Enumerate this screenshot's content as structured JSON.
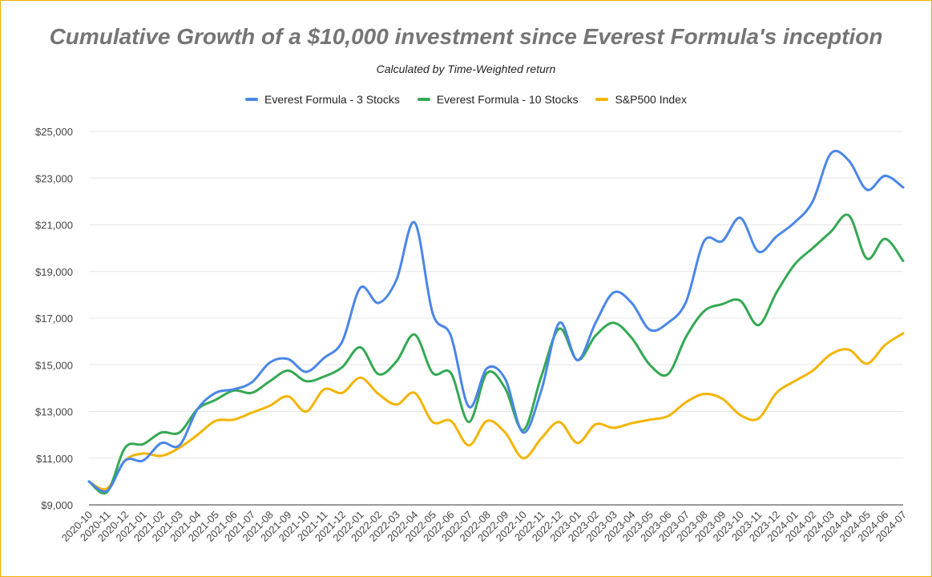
{
  "chart_data": {
    "type": "line",
    "title": "Cumulative Growth of a $10,000 investment since Everest Formula's inception",
    "subtitle": "Calculated by Time-Weighted return",
    "xlabel": "",
    "ylabel": "",
    "ylim": [
      9000,
      25000
    ],
    "yticks": [
      9000,
      11000,
      13000,
      15000,
      17000,
      19000,
      21000,
      23000,
      25000
    ],
    "ytick_labels": [
      "$9,000",
      "$11,000",
      "$13,000",
      "$15,000",
      "$17,000",
      "$19,000",
      "$21,000",
      "$23,000",
      "$25,000"
    ],
    "grid": "horizontal",
    "legend_position": "top-center",
    "categories": [
      "2020-10",
      "2020-11",
      "2020-12",
      "2021-01",
      "2021-02",
      "2021-03",
      "2021-04",
      "2021-05",
      "2021-06",
      "2021-07",
      "2021-08",
      "2021-09",
      "2021-10",
      "2021-11",
      "2021-12",
      "2022-01",
      "2022-02",
      "2022-03",
      "2022-04",
      "2022-05",
      "2022-06",
      "2022-07",
      "2022-08",
      "2022-09",
      "2022-10",
      "2022-11",
      "2022-12",
      "2023-01",
      "2023-02",
      "2023-03",
      "2023-04",
      "2023-05",
      "2023-06",
      "2023-07",
      "2023-08",
      "2023-09",
      "2023-10",
      "2023-11",
      "2023-12",
      "2024-01",
      "2024-02",
      "2024-03",
      "2024-04",
      "2024-05",
      "2024-06",
      "2024-07"
    ],
    "series": [
      {
        "name": "Everest Formula - 3 Stocks",
        "color": "#4a86e8",
        "values": [
          10000,
          9600,
          10900,
          10900,
          11650,
          11550,
          13100,
          13800,
          13950,
          14250,
          15100,
          15250,
          14700,
          15300,
          16000,
          18300,
          17650,
          18650,
          21100,
          17200,
          16250,
          13200,
          14850,
          14400,
          12100,
          13900,
          16800,
          15200,
          16800,
          18100,
          17650,
          16500,
          16800,
          17700,
          20300,
          20300,
          21300,
          19850,
          20500,
          21100,
          22000,
          24050,
          23750,
          22500,
          23100,
          22600
        ]
      },
      {
        "name": "Everest Formula - 10 Stocks",
        "color": "#34a853",
        "values": [
          10000,
          9550,
          11450,
          11600,
          12100,
          12100,
          13100,
          13500,
          13900,
          13800,
          14300,
          14750,
          14300,
          14500,
          14900,
          15750,
          14600,
          15150,
          16300,
          14650,
          14650,
          12550,
          14650,
          14000,
          12200,
          14500,
          16550,
          15200,
          16250,
          16800,
          16150,
          15000,
          14600,
          16200,
          17300,
          17600,
          17750,
          16700,
          18100,
          19300,
          20000,
          20700,
          21400,
          19550,
          20400,
          19450
        ]
      },
      {
        "name": "S&P500 Index",
        "color": "#f4b400",
        "values": [
          10000,
          9700,
          10900,
          11200,
          11100,
          11450,
          12000,
          12600,
          12650,
          12950,
          13250,
          13650,
          13000,
          13950,
          13800,
          14450,
          13750,
          13300,
          13800,
          12550,
          12600,
          11550,
          12600,
          12100,
          11000,
          11850,
          12550,
          11650,
          12450,
          12300,
          12500,
          12650,
          12800,
          13400,
          13750,
          13550,
          12850,
          12700,
          13800,
          14300,
          14750,
          15450,
          15650,
          15050,
          15850,
          16350
        ]
      }
    ]
  }
}
